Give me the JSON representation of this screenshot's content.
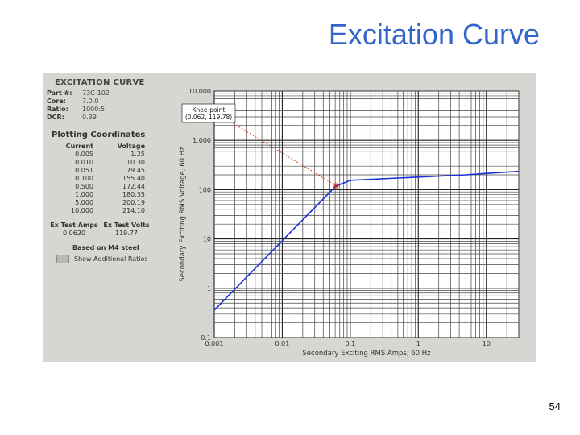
{
  "slide": {
    "title": "Excitation Curve",
    "page_number": "54"
  },
  "panel": {
    "title": "EXCITATION CURVE",
    "info": [
      {
        "label": "Part #:",
        "value": "73C-102"
      },
      {
        "label": "Core:",
        "value": "7.0.0"
      },
      {
        "label": "Ratio:",
        "value": "1000:5"
      },
      {
        "label": "DCR:",
        "value": "0.39"
      }
    ],
    "coords_title": "Plotting Coordinates",
    "coords_headers": [
      "Current",
      "Voltage"
    ],
    "coords": [
      [
        "0.005",
        "1.25"
      ],
      [
        "0.010",
        "10.30"
      ],
      [
        "0.051",
        "79.45"
      ],
      [
        "0.100",
        "155.40"
      ],
      [
        "0.500",
        "172.44"
      ],
      [
        "1.000",
        "180.35"
      ],
      [
        "5.000",
        "200.19"
      ],
      [
        "10.000",
        "214.10"
      ]
    ],
    "ex_headers": [
      "Ex Test Amps",
      "Ex Test Volts"
    ],
    "ex_values": [
      "0.0620",
      "119.77"
    ],
    "based_on": "Based on M4 steel",
    "checkbox_label": "Show Additional Ratios"
  },
  "chart_data": {
    "type": "line",
    "xlabel": "Secondary Exciting RMS Amps, 60 Hz",
    "ylabel": "Secondary Exciting RMS Voltage, 60 Hz",
    "x_scale": "log",
    "y_scale": "log",
    "xlim": [
      0.001,
      30
    ],
    "ylim": [
      0.1,
      10000
    ],
    "x_ticks": [
      {
        "value": 0.001,
        "label": "0.001"
      },
      {
        "value": 0.01,
        "label": "0.01"
      },
      {
        "value": 0.1,
        "label": "0.1"
      },
      {
        "value": 1,
        "label": "1"
      },
      {
        "value": 10,
        "label": "10"
      }
    ],
    "y_ticks": [
      {
        "value": 0.1,
        "label": "0.1"
      },
      {
        "value": 1,
        "label": "1"
      },
      {
        "value": 10,
        "label": "10"
      },
      {
        "value": 100,
        "label": "100"
      },
      {
        "value": 1000,
        "label": "1,000"
      },
      {
        "value": 10000,
        "label": "10,000"
      }
    ],
    "grid": true,
    "series": [
      {
        "color": "#1a2fd6",
        "points": [
          [
            0.001,
            0.36
          ],
          [
            0.0607,
            117
          ],
          [
            0.1,
            155
          ],
          [
            0.5,
            172
          ],
          [
            1,
            180
          ],
          [
            5,
            200
          ],
          [
            10,
            214
          ],
          [
            30,
            235
          ]
        ]
      }
    ],
    "annotation": {
      "lines": [
        "Knee-point",
        "(0.062, 119.78)"
      ],
      "point": [
        0.062,
        119.78
      ],
      "color": "#cc2200"
    }
  }
}
